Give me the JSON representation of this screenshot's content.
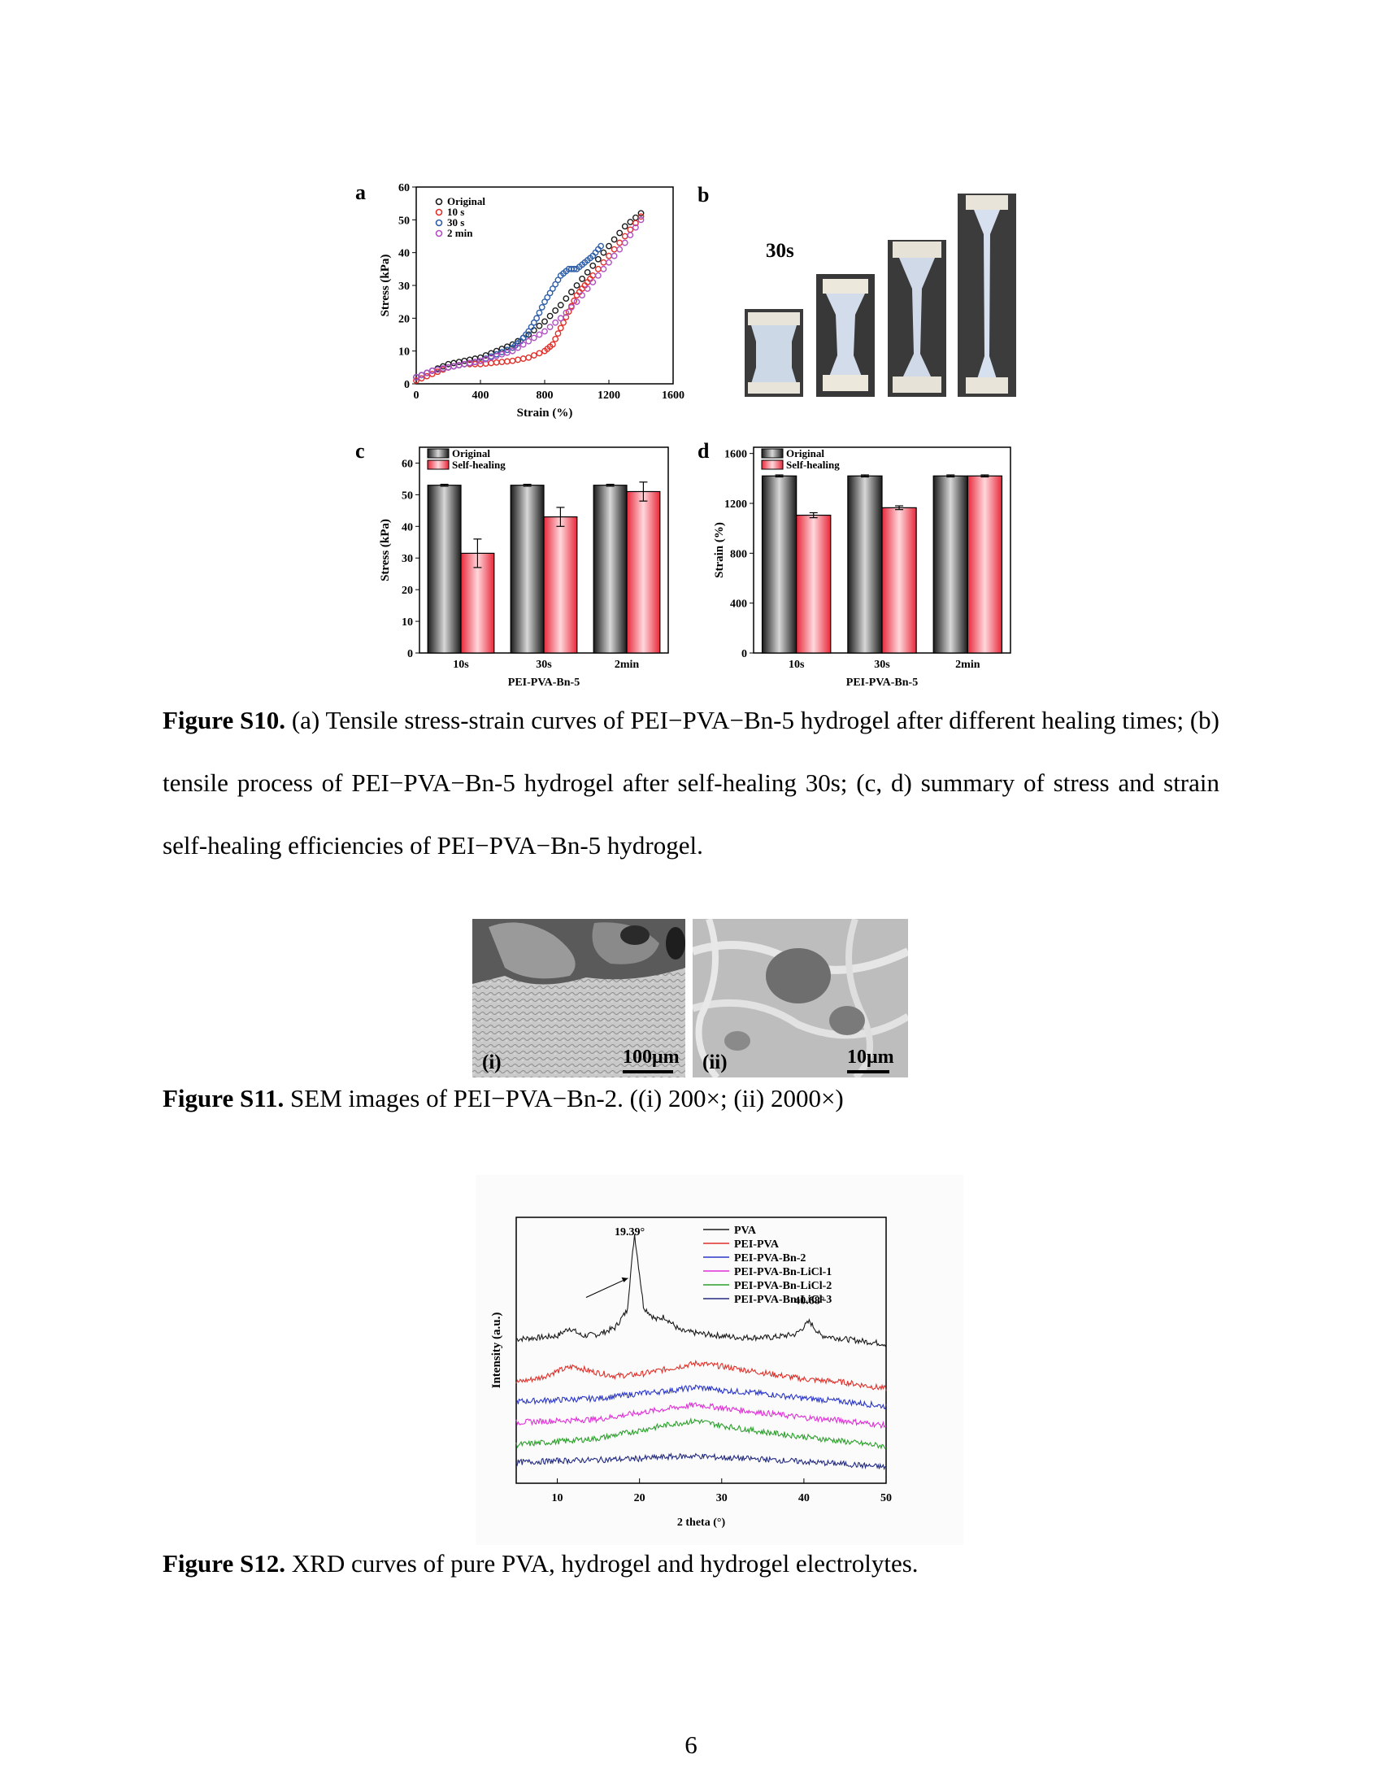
{
  "figure_s10": {
    "panels": {
      "a": "a",
      "b": "b",
      "c": "c",
      "d": "d"
    },
    "photo_label": "30s",
    "caption_bold": "Figure S10.",
    "caption_text": " (a) Tensile stress-strain curves of PEI−PVA−Bn-5 hydrogel after different healing times; (b) tensile process of PEI−PVA−Bn-5 hydrogel after self-healing 30s; (c, d) summary of stress and strain self-healing efficiencies of PEI−PVA−Bn-5 hydrogel."
  },
  "figure_s11": {
    "label_i": "(i)",
    "label_ii": "(ii)",
    "scale_i": "100μm",
    "scale_ii": "10μm",
    "caption_bold": "Figure S11.",
    "caption_text": " SEM images of PEI−PVA−Bn-2. ((i) 200×; (ii) 2000×)"
  },
  "figure_s12": {
    "caption_bold": "Figure S12.",
    "caption_text": " XRD curves of pure PVA, hydrogel and hydrogel electrolytes."
  },
  "page_number": "6",
  "chart_data": [
    {
      "type": "scatter",
      "id": "a",
      "xlabel": "Strain (%)",
      "ylabel": "Stress (kPa)",
      "xlim": [
        0,
        1600
      ],
      "ylim": [
        0,
        60
      ],
      "xticks": [
        0,
        400,
        800,
        1200,
        1600
      ],
      "yticks": [
        0,
        10,
        20,
        30,
        40,
        50,
        60
      ],
      "legend_position": "top-left",
      "series": [
        {
          "name": "Original",
          "color": "#1a1a1a",
          "x": [
            0,
            100,
            200,
            300,
            400,
            500,
            600,
            700,
            800,
            900,
            1000,
            1100,
            1200,
            1300,
            1400
          ],
          "y": [
            2,
            4,
            6,
            7,
            8,
            10,
            12,
            15,
            19,
            24,
            30,
            36,
            42,
            48,
            52
          ]
        },
        {
          "name": "10 s",
          "color": "#e0302a",
          "x": [
            0,
            100,
            200,
            300,
            400,
            500,
            600,
            700,
            800,
            850,
            900,
            950,
            1000,
            1050,
            1100,
            1200,
            1300,
            1400
          ],
          "y": [
            1,
            3,
            5,
            6,
            6,
            6.5,
            7,
            8,
            10,
            12,
            17,
            22,
            27,
            30,
            33,
            39,
            45,
            51
          ]
        },
        {
          "name": "30 s",
          "color": "#2e5ea8",
          "x": [
            0,
            100,
            200,
            300,
            400,
            500,
            600,
            650,
            700,
            750,
            800,
            850,
            900,
            950,
            1000,
            1050,
            1100,
            1150
          ],
          "y": [
            2,
            4,
            5,
            6,
            7,
            9,
            11,
            13,
            16,
            20,
            25,
            29,
            33,
            35,
            35,
            37,
            39,
            42
          ]
        },
        {
          "name": "2 min",
          "color": "#b050c0",
          "x": [
            0,
            100,
            200,
            300,
            400,
            500,
            600,
            700,
            800,
            900,
            1000,
            1100,
            1200,
            1300,
            1400
          ],
          "y": [
            2,
            4,
            5,
            6,
            7,
            8.5,
            10,
            13,
            16,
            20,
            25,
            31,
            37,
            43,
            50
          ]
        }
      ]
    },
    {
      "type": "bar",
      "id": "c",
      "categories": [
        "10s",
        "30s",
        "2min"
      ],
      "xlabel": "PEI-PVA-Bn-5",
      "ylabel": "Stress (kPa)",
      "ylim": [
        0,
        65
      ],
      "yticks": [
        0,
        10,
        20,
        30,
        40,
        50,
        60
      ],
      "legend_position": "top-left",
      "series": [
        {
          "name": "Original",
          "color": "#3a3a3a",
          "values": [
            53,
            53,
            53
          ],
          "errors": [
            0.3,
            0.3,
            0.3
          ]
        },
        {
          "name": "Self-healing",
          "color": "#e8283a",
          "values": [
            31.5,
            43,
            51
          ],
          "errors": [
            4.5,
            3,
            3
          ]
        }
      ]
    },
    {
      "type": "bar",
      "id": "d",
      "categories": [
        "10s",
        "30s",
        "2min"
      ],
      "xlabel": "PEI-PVA-Bn-5",
      "ylabel": "Strain (%)",
      "ylim": [
        0,
        1650
      ],
      "yticks": [
        0,
        400,
        800,
        1200,
        1600
      ],
      "legend_position": "top-left",
      "series": [
        {
          "name": "Original",
          "color": "#3a3a3a",
          "values": [
            1420,
            1420,
            1420
          ],
          "errors": [
            8,
            8,
            8
          ]
        },
        {
          "name": "Self-healing",
          "color": "#e8283a",
          "values": [
            1105,
            1165,
            1420
          ],
          "errors": [
            20,
            15,
            8
          ]
        }
      ]
    },
    {
      "type": "line",
      "id": "xrd",
      "xlabel": "2 theta (°)",
      "ylabel": "Intensity (a.u.)",
      "xlim": [
        5,
        50
      ],
      "xticks": [
        10,
        20,
        30,
        40,
        50
      ],
      "legend_position": "top-right",
      "annotations": [
        {
          "text": "19.39°",
          "x": 19.39
        },
        {
          "text": "40.68°",
          "x": 40.68
        }
      ],
      "series": [
        {
          "name": "PVA",
          "color": "#1a1a1a",
          "offset": 5.0,
          "x": [
            5,
            8,
            10,
            11.5,
            13,
            15,
            17,
            18.5,
            19.39,
            20.5,
            22,
            23,
            25,
            28,
            32,
            36,
            39,
            40.68,
            42,
            45,
            50
          ],
          "y": [
            0,
            0.05,
            0.1,
            0.35,
            0.1,
            0.15,
            0.35,
            0.9,
            3.3,
            1.0,
            0.6,
            0.7,
            0.25,
            0.15,
            0.05,
            0.05,
            0.15,
            0.55,
            0.12,
            0,
            -0.15
          ]
        },
        {
          "name": "PEI-PVA",
          "color": "#e0302a",
          "offset": 3.65,
          "x": [
            5,
            8,
            10,
            12,
            14,
            17,
            20,
            24,
            27,
            30,
            35,
            40,
            45,
            50
          ],
          "y": [
            0,
            0.15,
            0.35,
            0.5,
            0.35,
            0.2,
            0.25,
            0.45,
            0.6,
            0.5,
            0.3,
            0.1,
            0,
            -0.2
          ]
        },
        {
          "name": "PEI-PVA-Bn-2",
          "color": "#2a36c8",
          "offset": 3.05,
          "x": [
            5,
            10,
            15,
            20,
            24,
            27,
            30,
            35,
            40,
            45,
            50
          ],
          "y": [
            0,
            0.05,
            0.1,
            0.25,
            0.35,
            0.45,
            0.35,
            0.25,
            0.1,
            0,
            -0.15
          ]
        },
        {
          "name": "PEI-PVA-Bn-LiCl-1",
          "color": "#e030d8",
          "offset": 2.4,
          "x": [
            5,
            10,
            15,
            20,
            24,
            27,
            30,
            35,
            40,
            45,
            50
          ],
          "y": [
            0,
            0.05,
            0.1,
            0.3,
            0.45,
            0.55,
            0.45,
            0.3,
            0.15,
            0.05,
            -0.1
          ]
        },
        {
          "name": "PEI-PVA-Bn-LiCl-2",
          "color": "#2aa02a",
          "offset": 1.8,
          "x": [
            5,
            10,
            15,
            20,
            24,
            27,
            30,
            35,
            40,
            45,
            50
          ],
          "y": [
            -0.1,
            0,
            0.1,
            0.35,
            0.55,
            0.65,
            0.5,
            0.3,
            0.15,
            0,
            -0.15
          ]
        },
        {
          "name": "PEI-PVA-Bn-LiCl-3",
          "color": "#222a80",
          "offset": 1.15,
          "x": [
            5,
            10,
            15,
            20,
            24,
            27,
            30,
            35,
            40,
            45,
            50
          ],
          "y": [
            0,
            0.05,
            0.08,
            0.12,
            0.18,
            0.2,
            0.15,
            0.1,
            0.02,
            -0.05,
            -0.15
          ]
        }
      ]
    }
  ]
}
